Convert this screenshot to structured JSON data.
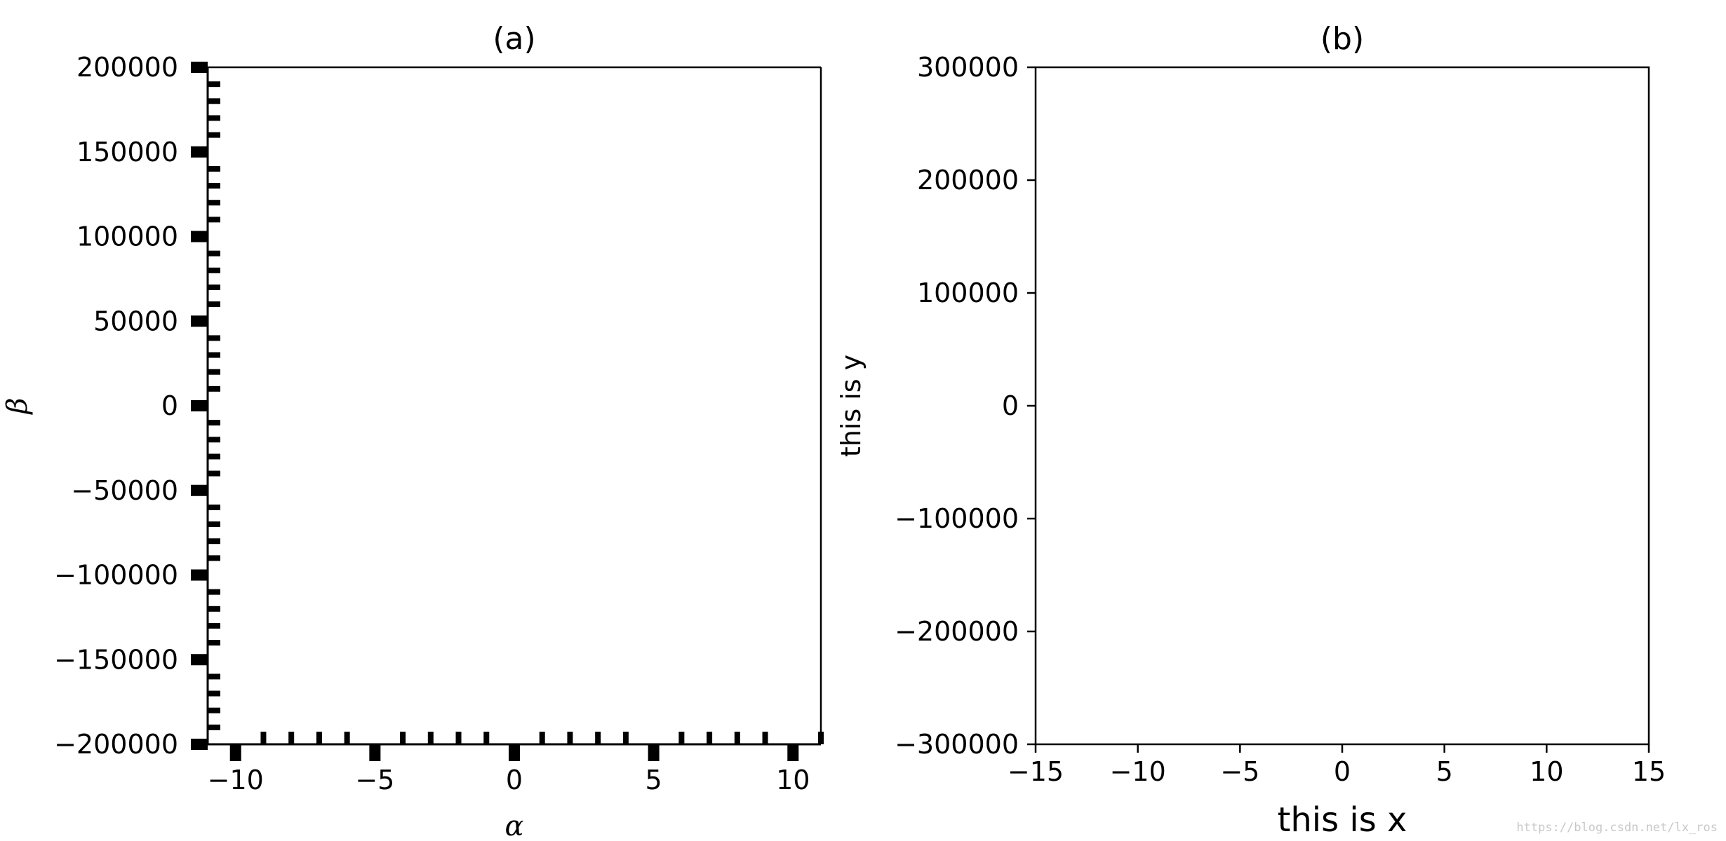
{
  "chart_data": [
    {
      "type": "line",
      "panel": "a",
      "title": "(a)",
      "xlabel": "α",
      "ylabel": "β",
      "xlim": [
        -11,
        11
      ],
      "ylim": [
        -200000,
        200000
      ],
      "xticks": [
        -10,
        -5,
        0,
        5,
        10
      ],
      "xtick_labels": [
        "−10",
        "−5",
        "0",
        "5",
        "10"
      ],
      "xminor_ticks": [
        -9,
        -8,
        -7,
        -6,
        -4,
        -3,
        -2,
        -1,
        1,
        2,
        3,
        4,
        6,
        7,
        8,
        9,
        11
      ],
      "yticks": [
        -200000,
        -150000,
        -100000,
        -50000,
        0,
        50000,
        100000,
        150000,
        200000
      ],
      "ytick_labels": [
        "−200000",
        "−150000",
        "−100000",
        "−50000",
        "0",
        "50000",
        "100000",
        "150000",
        "200000"
      ],
      "yminor_ticks": [
        -190000,
        -180000,
        -170000,
        -160000,
        -140000,
        -130000,
        -120000,
        -110000,
        -90000,
        -80000,
        -70000,
        -60000,
        -40000,
        -30000,
        -20000,
        -10000,
        10000,
        20000,
        30000,
        40000,
        60000,
        70000,
        80000,
        90000,
        110000,
        120000,
        130000,
        140000,
        160000,
        170000,
        180000,
        190000
      ],
      "spines": [
        "left",
        "bottom",
        "right",
        "top"
      ],
      "grid": false,
      "series": []
    },
    {
      "type": "line",
      "panel": "b",
      "title": "(b)",
      "xlabel": "this is x",
      "ylabel": "this is y",
      "xlim": [
        -15,
        15
      ],
      "ylim": [
        -300000,
        300000
      ],
      "xticks": [
        -15,
        -10,
        -5,
        0,
        5,
        10,
        15
      ],
      "xtick_labels": [
        "−15",
        "−10",
        "−5",
        "0",
        "5",
        "10",
        "15"
      ],
      "yticks": [
        -300000,
        -200000,
        -100000,
        0,
        100000,
        200000,
        300000
      ],
      "ytick_labels": [
        "−300000",
        "−200000",
        "−100000",
        "0",
        "100000",
        "200000",
        "300000"
      ],
      "grid": false,
      "series": []
    }
  ],
  "watermark": "https://blog.csdn.net/lx_ros"
}
